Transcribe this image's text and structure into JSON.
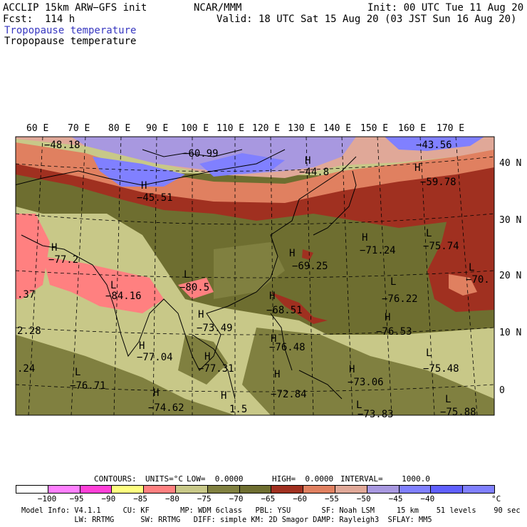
{
  "header": {
    "model": "ACCLIP 15km ARW−GFS init",
    "org": "NCAR/MMM",
    "init": "Init: 00 UTC Tue 11 Aug 20",
    "fcst": "Fcst:  114 h",
    "valid": "Valid: 18 UTC Sat 15 Aug 20 (03 JST Sun 16 Aug 20)",
    "field_1": "Tropopause temperature",
    "field_2": "Tropopause temperature"
  },
  "map": {
    "lon_labels": [
      "60 E",
      "70 E",
      "80 E",
      "90 E",
      "100 E",
      "110 E",
      "120 E",
      "130 E",
      "140 E",
      "150 E",
      "160 E",
      "170 E"
    ],
    "lat_labels": [
      "40 N",
      "30 N",
      "20 N",
      "10 N",
      "0"
    ],
    "annotations": [
      {
        "text": "−48.18"
      },
      {
        "text": "−60.99"
      },
      {
        "text": "−43.56"
      },
      {
        "text": "−44.8"
      },
      {
        "text": "−45.51"
      },
      {
        "text": "−59.78"
      },
      {
        "text": "−77.2"
      },
      {
        "text": "−71.24"
      },
      {
        "text": "−75.74"
      },
      {
        "text": "−69.25"
      },
      {
        "text": "−80.5"
      },
      {
        "text": "−84.16"
      },
      {
        "text": "−76.22"
      },
      {
        "text": "−70."
      },
      {
        "text": "−68.51"
      },
      {
        "text": "−73.49"
      },
      {
        "text": "−76.53"
      },
      {
        "text": "−76.48"
      },
      {
        "text": "−77.04"
      },
      {
        "text": "−77.31"
      },
      {
        "text": "−75.48"
      },
      {
        "text": "−73.06"
      },
      {
        "text": "−76.71"
      },
      {
        "text": "−72.84"
      },
      {
        "text": "−74.62"
      },
      {
        "text": "−75.88"
      },
      {
        "text": "−73.83"
      },
      {
        "text": ".37"
      },
      {
        "text": "2.28"
      },
      {
        "text": ".24"
      },
      {
        "text": "1.5"
      }
    ],
    "marks": [
      "H",
      "H",
      "H",
      "H",
      "L",
      "H",
      "L",
      "H",
      "L",
      "L",
      "L",
      "H",
      "H",
      "H",
      "H",
      "H",
      "H",
      "L",
      "H",
      "H",
      "L",
      "H",
      "H",
      "L",
      "L"
    ]
  },
  "contours": {
    "label": "CONTOURS:",
    "units": "UNITS=°C",
    "low": "LOW=  0.0000",
    "high": "HIGH=  0.0000",
    "interval": "INTERVAL=    1000.0"
  },
  "colorbar": {
    "colors": [
      "#ffffff",
      "#ff80ff",
      "#ff40d8",
      "#ffff80",
      "#ff8080",
      "#c8c888",
      "#808040",
      "#6e6e30",
      "#a03020",
      "#e08060",
      "#e0a898",
      "#a898e0",
      "#8080ff",
      "#6060ff",
      "#8080ff"
    ],
    "labels": [
      "−100",
      "−95",
      "−90",
      "−85",
      "−80",
      "−75",
      "−70",
      "−65",
      "−60",
      "−55",
      "−50",
      "−45",
      "−40",
      "°C"
    ]
  },
  "footer": {
    "line1": "Model Info: V4.1.1     CU: KF       MP: WDM 6class   PBL: YSU       SF: Noah LSM     15 km    51 levels    90 sec",
    "line2": "            LW: RRTMG      SW: RRTMG   DIFF: simple KM: 2D Smagor DAMP: Rayleigh3  SFLAY: MM5"
  }
}
